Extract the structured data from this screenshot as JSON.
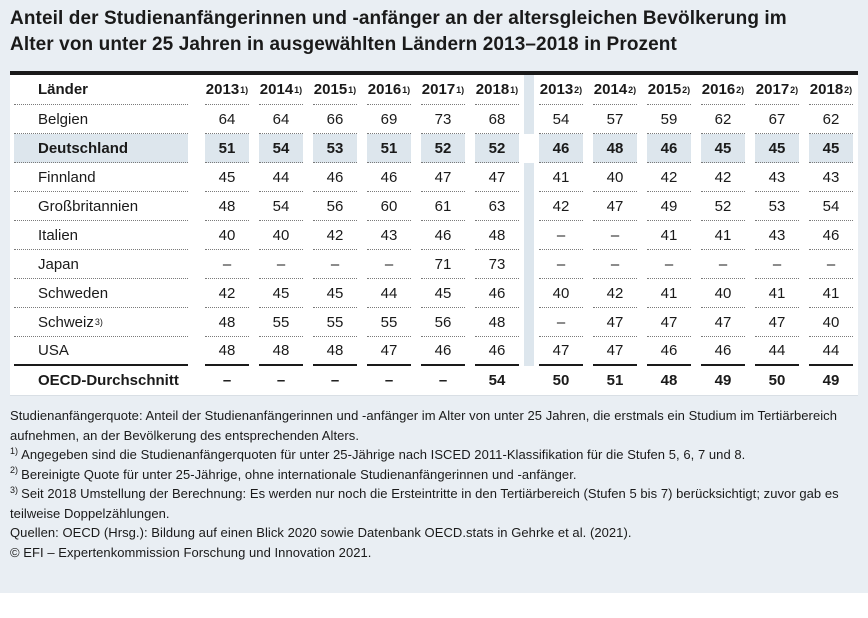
{
  "title": {
    "line1": "Anteil der Studienanfängerinnen und -anfänger an der altersgleichen Bevölkerung im",
    "line2": "Alter von unter 25 Jahren in ausgewählten Ländern 2013–2018 in Prozent"
  },
  "table": {
    "label_header": "Länder",
    "col_groups": [
      {
        "sup": "1)",
        "years": [
          "2013",
          "2014",
          "2015",
          "2016",
          "2017",
          "2018"
        ]
      },
      {
        "sup": "2)",
        "years": [
          "2013",
          "2014",
          "2015",
          "2016",
          "2017",
          "2018"
        ]
      }
    ],
    "rows": [
      {
        "label": "Belgien",
        "sup": "",
        "highlight": false,
        "bold": false,
        "band": true,
        "rule": "dotted",
        "values": [
          "64",
          "64",
          "66",
          "69",
          "73",
          "68",
          "54",
          "57",
          "59",
          "62",
          "67",
          "62"
        ]
      },
      {
        "label": "Deutschland",
        "sup": "",
        "highlight": true,
        "bold": true,
        "band": false,
        "rule": "dotted",
        "values": [
          "51",
          "54",
          "53",
          "51",
          "52",
          "52",
          "46",
          "48",
          "46",
          "45",
          "45",
          "45"
        ]
      },
      {
        "label": "Finnland",
        "sup": "",
        "highlight": false,
        "bold": false,
        "band": true,
        "rule": "dotted",
        "values": [
          "45",
          "44",
          "46",
          "46",
          "47",
          "47",
          "41",
          "40",
          "42",
          "42",
          "43",
          "43"
        ]
      },
      {
        "label": "Großbritannien",
        "sup": "",
        "highlight": false,
        "bold": false,
        "band": true,
        "rule": "dotted",
        "values": [
          "48",
          "54",
          "56",
          "60",
          "61",
          "63",
          "42",
          "47",
          "49",
          "52",
          "53",
          "54"
        ]
      },
      {
        "label": "Italien",
        "sup": "",
        "highlight": false,
        "bold": false,
        "band": true,
        "rule": "dotted",
        "values": [
          "40",
          "40",
          "42",
          "43",
          "46",
          "48",
          "–",
          "–",
          "41",
          "41",
          "43",
          "46"
        ]
      },
      {
        "label": "Japan",
        "sup": "",
        "highlight": false,
        "bold": false,
        "band": true,
        "rule": "dotted",
        "values": [
          "–",
          "–",
          "–",
          "–",
          "71",
          "73",
          "–",
          "–",
          "–",
          "–",
          "–",
          "–"
        ]
      },
      {
        "label": "Schweden",
        "sup": "",
        "highlight": false,
        "bold": false,
        "band": true,
        "rule": "dotted",
        "values": [
          "42",
          "45",
          "45",
          "44",
          "45",
          "46",
          "40",
          "42",
          "41",
          "40",
          "41",
          "41"
        ]
      },
      {
        "label": "Schweiz",
        "sup": "3)",
        "highlight": false,
        "bold": false,
        "band": true,
        "rule": "dotted",
        "values": [
          "48",
          "55",
          "55",
          "55",
          "56",
          "48",
          "–",
          "47",
          "47",
          "47",
          "47",
          "40"
        ]
      },
      {
        "label": "USA",
        "sup": "",
        "highlight": false,
        "bold": false,
        "band": true,
        "rule": "solid",
        "values": [
          "48",
          "48",
          "48",
          "47",
          "46",
          "46",
          "47",
          "47",
          "46",
          "46",
          "44",
          "44"
        ]
      },
      {
        "label": "OECD-Durchschnitt",
        "sup": "",
        "highlight": false,
        "bold": true,
        "band": false,
        "rule": "none",
        "values": [
          "–",
          "–",
          "–",
          "–",
          "–",
          "54",
          "50",
          "51",
          "48",
          "49",
          "50",
          "49"
        ]
      }
    ]
  },
  "notes": {
    "definition": "Studienanfängerquote: Anteil der Studienanfängerinnen und -anfänger im Alter von unter 25 Jahren, die erstmals ein Studium im Tertiärbereich aufnehmen, an der Bevölkerung des entsprechenden Alters.",
    "footnotes": [
      {
        "marker": "1)",
        "text": "Angegeben sind die Studienanfängerquoten für unter 25-Jährige nach ISCED 2011-Klassifikation für die Stufen 5, 6, 7 und 8."
      },
      {
        "marker": "2)",
        "text": "Bereinigte Quote für unter 25-Jährige, ohne internationale Studienanfängerinnen und -anfänger."
      },
      {
        "marker": "3)",
        "text": "Seit 2018 Umstellung der Berechnung: Es werden nur noch die Ersteintritte in den Tertiärbereich (Stufen 5 bis 7) berücksichtigt; zuvor gab es teilweise Doppelzählungen."
      }
    ],
    "sources": "Quellen: OECD (Hrsg.): Bildung auf einen Blick 2020 sowie Datenbank OECD.stats in Gehrke et al. (2021).",
    "copyright": "© EFI – Expertenkommission Forschung und Innovation 2021."
  },
  "chart_data": {
    "type": "table",
    "title": "Anteil der Studienanfängerinnen und -anfänger an der altersgleichen Bevölkerung im Alter von unter 25 Jahren in ausgewählten Ländern 2013–2018 in Prozent",
    "columns": [
      "Länder",
      "2013¹⁾",
      "2014¹⁾",
      "2015¹⁾",
      "2016¹⁾",
      "2017¹⁾",
      "2018¹⁾",
      "2013²⁾",
      "2014²⁾",
      "2015²⁾",
      "2016²⁾",
      "2017²⁾",
      "2018²⁾"
    ],
    "rows": [
      [
        "Belgien",
        64,
        64,
        66,
        69,
        73,
        68,
        54,
        57,
        59,
        62,
        67,
        62
      ],
      [
        "Deutschland",
        51,
        54,
        53,
        51,
        52,
        52,
        46,
        48,
        46,
        45,
        45,
        45
      ],
      [
        "Finnland",
        45,
        44,
        46,
        46,
        47,
        47,
        41,
        40,
        42,
        42,
        43,
        43
      ],
      [
        "Großbritannien",
        48,
        54,
        56,
        60,
        61,
        63,
        42,
        47,
        49,
        52,
        53,
        54
      ],
      [
        "Italien",
        40,
        40,
        42,
        43,
        46,
        48,
        "–",
        "–",
        41,
        41,
        43,
        46
      ],
      [
        "Japan",
        "–",
        "–",
        "–",
        "–",
        71,
        73,
        "–",
        "–",
        "–",
        "–",
        "–",
        "–"
      ],
      [
        "Schweden",
        42,
        45,
        45,
        44,
        45,
        46,
        40,
        42,
        41,
        40,
        41,
        41
      ],
      [
        "Schweiz³⁾",
        48,
        55,
        55,
        55,
        56,
        48,
        "–",
        47,
        47,
        47,
        47,
        40
      ],
      [
        "USA",
        48,
        48,
        48,
        47,
        46,
        46,
        47,
        47,
        46,
        46,
        44,
        44
      ],
      [
        "OECD-Durchschnitt",
        "–",
        "–",
        "–",
        "–",
        "–",
        54,
        50,
        51,
        48,
        49,
        50,
        49
      ]
    ]
  },
  "colors": {
    "page_bg": "#e9eef3",
    "card_bg": "#ffffff",
    "highlight": "#dde6ed",
    "text": "#1a1a1a",
    "rule_dark": "#1a1a1a",
    "rule_dotted": "#7a7a7a"
  }
}
